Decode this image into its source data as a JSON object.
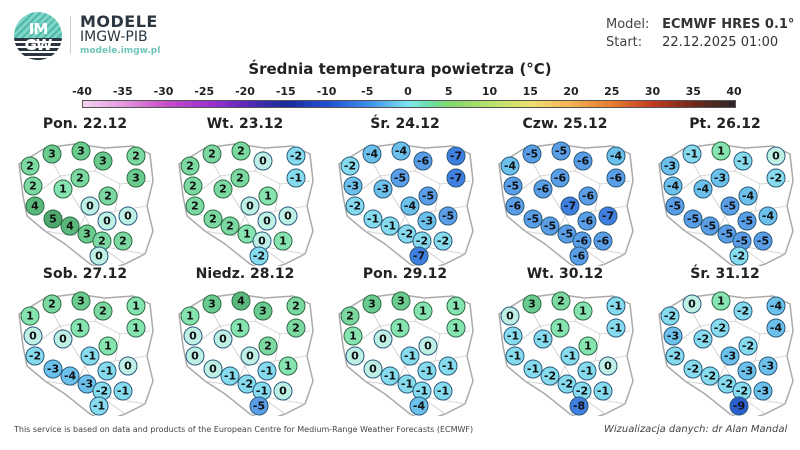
{
  "header": {
    "logo_line1": "IM",
    "logo_line2": "GW",
    "brand_title": "MODELE",
    "brand_subtitle": "IMGW-PIB",
    "brand_url": "modele.imgw.pl",
    "model_label": "Model:",
    "model_value": "ECMWF HRES 0.1°",
    "start_label": "Start:",
    "start_value": "22.12.2025 01:00"
  },
  "colorbar": {
    "title": "Średnia temperatura powietrza (°C)",
    "ticks": [
      "-40",
      "-35",
      "-30",
      "-25",
      "-20",
      "-15",
      "-10",
      "-5",
      "0",
      "5",
      "10",
      "15",
      "20",
      "25",
      "30",
      "35",
      "40"
    ]
  },
  "footer": {
    "source_note": "This service is based on data and products of the European Centre for Medium-Range Weather Forecasts (ECMWF)",
    "credit": "Wizualizacja danych: dr Alan Mandal"
  },
  "chart_data": {
    "type": "heatmap",
    "title": "Średnia temperatura powietrza (°C)",
    "colorbar_range": [
      -40,
      40
    ],
    "colorbar_ticks": [
      -40,
      -35,
      -30,
      -25,
      -20,
      -15,
      -10,
      -5,
      0,
      5,
      10,
      15,
      20,
      25,
      30,
      35,
      40
    ],
    "station_order": [
      "NW1",
      "N1",
      "N2",
      "N3",
      "NE1",
      "NE2",
      "W1",
      "W2",
      "C1",
      "C2",
      "C3",
      "SW1",
      "SE1",
      "SE2",
      "SW2",
      "S1",
      "S2",
      "S3",
      "SE3",
      "S4"
    ],
    "panels": [
      {
        "label": "Pon. 22.12",
        "values": [
          2,
          3,
          3,
          3,
          2,
          3,
          2,
          1,
          2,
          2,
          0,
          4,
          0,
          0,
          5,
          4,
          3,
          2,
          2,
          0
        ]
      },
      {
        "label": "Wt. 23.12",
        "values": [
          2,
          2,
          2,
          0,
          -2,
          -1,
          2,
          2,
          2,
          1,
          0,
          2,
          0,
          0,
          2,
          2,
          1,
          0,
          1,
          -2
        ]
      },
      {
        "label": "Śr. 24.12",
        "values": [
          -2,
          -4,
          -4,
          -6,
          -7,
          -7,
          -3,
          -3,
          -5,
          -5,
          -4,
          -2,
          -3,
          -5,
          -1,
          -1,
          -2,
          -2,
          -2,
          -7
        ]
      },
      {
        "label": "Czw. 25.12",
        "values": [
          -4,
          -5,
          -5,
          -6,
          -4,
          -6,
          -5,
          -6,
          -6,
          -6,
          -7,
          -6,
          -6,
          -7,
          -5,
          -5,
          -5,
          -6,
          -6,
          -6
        ]
      },
      {
        "label": "Pt. 26.12",
        "values": [
          -3,
          -1,
          1,
          -1,
          0,
          -2,
          -4,
          -4,
          -3,
          -4,
          -5,
          -5,
          -5,
          -4,
          -5,
          -5,
          -5,
          -5,
          -5,
          -2
        ]
      },
      {
        "label": "Sob. 27.12",
        "values": [
          1,
          2,
          3,
          2,
          1,
          1,
          0,
          0,
          1,
          1,
          -1,
          -2,
          -1,
          0,
          -3,
          -4,
          -3,
          -2,
          -1,
          -1
        ]
      },
      {
        "label": "Niedz. 28.12",
        "values": [
          1,
          3,
          4,
          3,
          2,
          2,
          0,
          0,
          1,
          2,
          0,
          0,
          -1,
          1,
          0,
          -1,
          -2,
          -1,
          0,
          -5
        ]
      },
      {
        "label": "Pon. 29.12",
        "values": [
          2,
          3,
          3,
          1,
          1,
          1,
          1,
          0,
          1,
          0,
          -1,
          0,
          -1,
          -1,
          0,
          -1,
          -1,
          -1,
          -1,
          -4
        ]
      },
      {
        "label": "Wt. 30.12",
        "values": [
          0,
          3,
          2,
          1,
          -1,
          -1,
          -1,
          -1,
          1,
          1,
          -1,
          -1,
          -1,
          0,
          -1,
          -2,
          -2,
          -2,
          -1,
          -8
        ]
      },
      {
        "label": "Śr. 31.12",
        "values": [
          -2,
          0,
          1,
          -2,
          -4,
          -4,
          -3,
          -2,
          -2,
          -2,
          -3,
          -2,
          -3,
          -3,
          -2,
          -2,
          -2,
          -2,
          -3,
          -9
        ]
      }
    ]
  }
}
